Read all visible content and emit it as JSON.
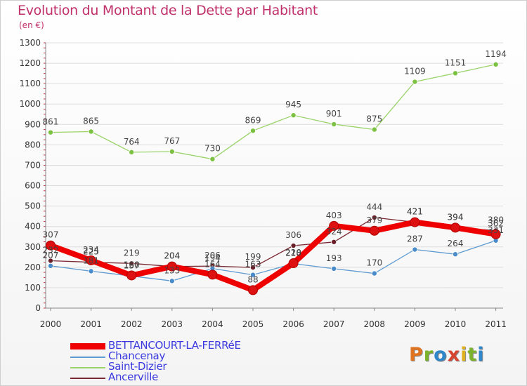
{
  "header": {
    "title": "Evolution du Montant de la Dette par Habitant",
    "subtitle": "(en €)"
  },
  "logo": {
    "text": "Proxiti",
    "letter_colors": [
      "#e0731f",
      "#7cb32d",
      "#2f86c9",
      "#d8452f",
      "#e0b21f",
      "#7cb32d",
      "#2f86c9"
    ]
  },
  "chart_data": {
    "type": "line",
    "title": "Evolution du Montant de la Dette par Habitant",
    "ylabel": "(en €)",
    "xlabel": "",
    "x": [
      "2000",
      "2001",
      "2002",
      "2003",
      "2004",
      "2005",
      "2006",
      "2007",
      "2008",
      "2009",
      "2010",
      "2011"
    ],
    "ylim": [
      0,
      1300
    ],
    "yticks": [
      0,
      100,
      200,
      300,
      400,
      500,
      600,
      700,
      800,
      900,
      1000,
      1100,
      1200,
      1300
    ],
    "grid": "horizontal",
    "legend": "bottom",
    "series": [
      {
        "name": "Saint-Dizier",
        "color": "#9ad36a",
        "marker": "#7cc142",
        "width": 1.3,
        "values": [
          861,
          865,
          764,
          767,
          730,
          869,
          945,
          901,
          875,
          1109,
          1151,
          1194
        ],
        "labels": [
          "861",
          "865",
          "764",
          "767",
          "730",
          "869",
          "945",
          "901",
          "875",
          "1109",
          "1151",
          "1194"
        ]
      },
      {
        "name": "Ancerville",
        "color": "#7a2832",
        "marker": "#6a1e28",
        "width": 1.3,
        "values": [
          232,
          225,
          219,
          204,
          206,
          199,
          306,
          324,
          444,
          421,
          394,
          380
        ],
        "labels": [
          "232",
          "225",
          "219",
          "204",
          "206",
          "199",
          "306",
          "324",
          "444",
          "421",
          "394",
          "380"
        ]
      },
      {
        "name": "Chancenay",
        "color": "#5f9bd0",
        "marker": "#4a8cca",
        "width": 1.3,
        "values": [
          207,
          181,
          157,
          133,
          194,
          163,
          218,
          193,
          170,
          287,
          264,
          331
        ],
        "labels": [
          "207",
          "181",
          "157",
          "133",
          "194",
          "163",
          "218",
          "193",
          "170",
          "287",
          "264",
          "331"
        ]
      },
      {
        "name": "BETTANCOURT-LA-FERRéE",
        "color": "#ee0000",
        "marker": "#dd1111",
        "width": 8,
        "values": [
          307,
          234,
          160,
          204,
          164,
          88,
          220,
          403,
          379,
          421,
          394,
          362
        ],
        "labels": [
          "307",
          "234",
          "160",
          "204",
          "164",
          "88",
          "220",
          "403",
          "379",
          "421",
          "394",
          "362"
        ]
      }
    ]
  }
}
